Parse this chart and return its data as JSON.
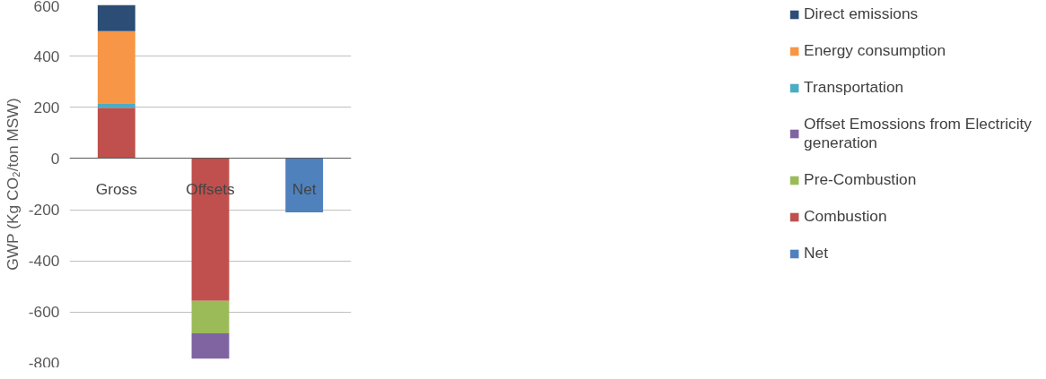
{
  "chart_data": {
    "type": "bar",
    "stacked": true,
    "ylabel": "GWP (Kg CO₂/ton MSW)",
    "categories": [
      "Gross",
      "Offsets",
      "Net"
    ],
    "series": [
      {
        "name": "Net",
        "color": "#4f81bd",
        "values": [
          null,
          null,
          -210
        ]
      },
      {
        "name": "Combustion",
        "color": "#c0504d",
        "values": [
          198,
          -556,
          null
        ]
      },
      {
        "name": "Pre-Combustion",
        "color": "#9bbb59",
        "values": [
          null,
          -127,
          null
        ]
      },
      {
        "name": "Offset Emossions from Electricity generation",
        "color": "#8064a2",
        "values": [
          null,
          -99,
          null
        ]
      },
      {
        "name": "Transportation",
        "color": "#4bacc6",
        "values": [
          18,
          null,
          null
        ]
      },
      {
        "name": "Energy consumption",
        "color": "#f79646",
        "values": [
          282,
          null,
          null
        ]
      },
      {
        "name": "Direct emissions",
        "color": "#2c4d75",
        "values": [
          102,
          null,
          null
        ]
      }
    ],
    "ylim": [
      -800,
      600
    ],
    "yticks": [
      -800,
      -600,
      -400,
      -200,
      0,
      200,
      400,
      600
    ],
    "grid": "y",
    "legend": "right"
  }
}
